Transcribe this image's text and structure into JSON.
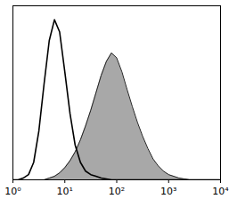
{
  "chart_data": {
    "type": "histogram",
    "log": "x",
    "tick_labels": "x",
    "x": [
      1,
      1.26,
      1.58,
      2,
      2.51,
      3.16,
      3.98,
      5.01,
      6.31,
      7.94,
      10,
      12.6,
      15.8,
      20,
      25.1,
      31.6,
      39.8,
      50.1,
      63.1,
      79.4,
      100,
      126,
      158,
      200,
      251,
      316,
      398,
      501,
      631,
      794,
      1000,
      1259,
      1585,
      1995,
      2512,
      3162,
      3981,
      5012,
      6310,
      7943,
      10000
    ],
    "series": [
      {
        "type": "area",
        "color": "#a8a8a8",
        "values": [
          0,
          0,
          0,
          0,
          0,
          0,
          0,
          1,
          2,
          4,
          7,
          11,
          16,
          23,
          31,
          40,
          50,
          60,
          68,
          73,
          70,
          62,
          52,
          42,
          33,
          25,
          18,
          12,
          8,
          5,
          3,
          2,
          1,
          0.5,
          0,
          0,
          0,
          0,
          0,
          0,
          0
        ]
      },
      {
        "type": "line",
        "color": "#000000",
        "values": [
          0,
          0,
          1,
          3,
          10,
          28,
          55,
          80,
          92,
          85,
          62,
          38,
          20,
          10,
          5,
          3,
          2,
          1,
          0.5,
          0,
          0,
          0,
          0,
          0,
          0,
          0,
          0,
          0,
          0,
          0,
          0,
          0,
          0,
          0,
          0,
          0,
          0,
          0,
          0,
          0,
          0
        ]
      }
    ],
    "xlim": [
      1,
      10000
    ],
    "xticks": [
      {
        "value": 1,
        "label": "10⁰"
      },
      {
        "value": 10,
        "label": "10¹"
      },
      {
        "value": 100,
        "label": "10²"
      },
      {
        "value": 1000,
        "label": "10³"
      },
      {
        "value": 10000,
        "label": "10⁴"
      }
    ],
    "ylim": [
      0,
      100
    ]
  }
}
